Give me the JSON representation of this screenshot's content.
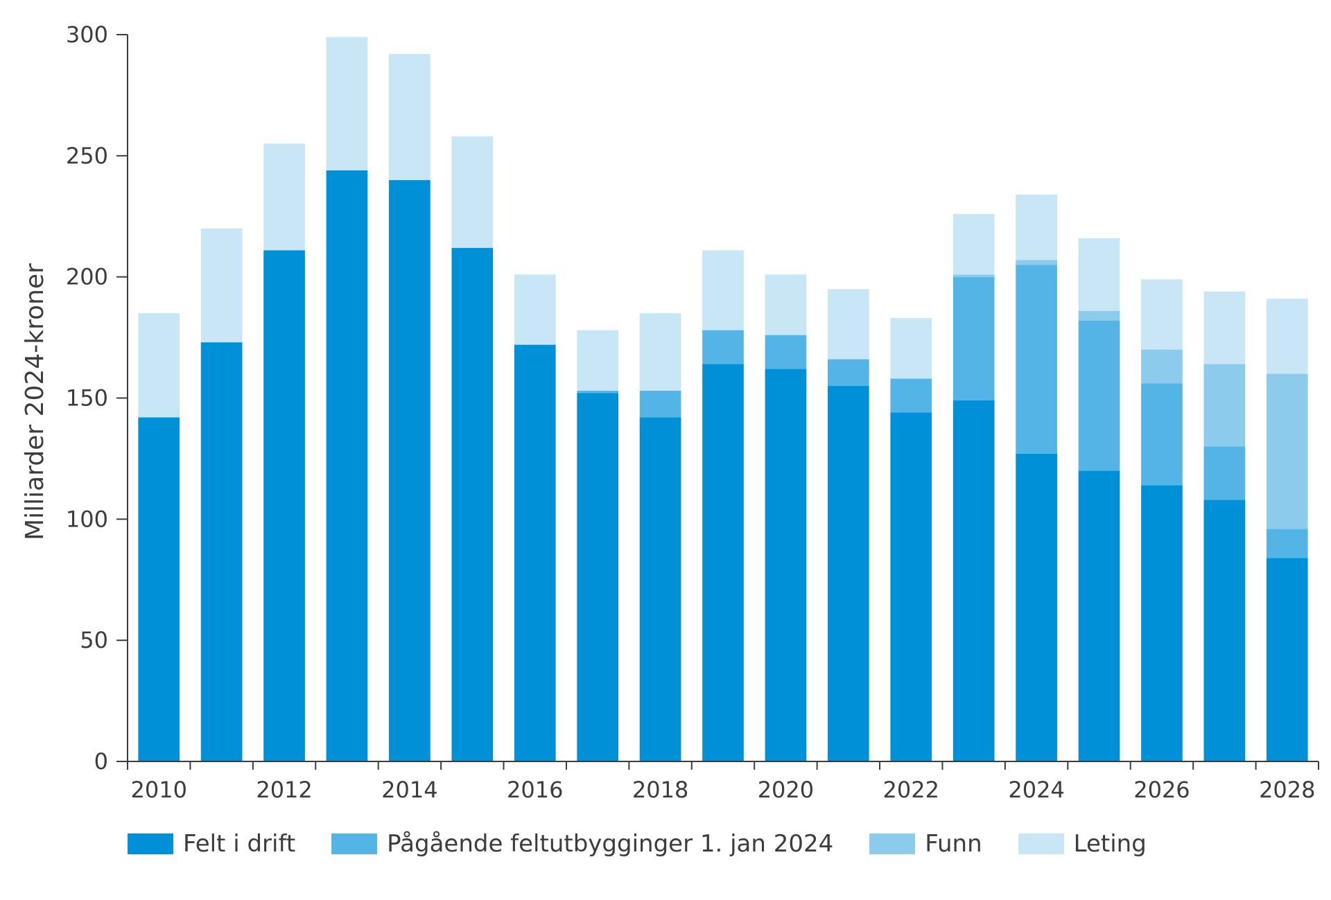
{
  "chart_data": {
    "type": "bar",
    "stacked": true,
    "title": "",
    "xlabel": "",
    "ylabel": "Milliarder 2024-kroner",
    "ylim": [
      0,
      300
    ],
    "yticks": [
      "0",
      "50",
      "100",
      "150",
      "200",
      "250",
      "300"
    ],
    "grid": false,
    "legend_position": "bottom",
    "categories": [
      "2010",
      "2011",
      "2012",
      "2013",
      "2014",
      "2015",
      "2016",
      "2017",
      "2018",
      "2019",
      "2020",
      "2021",
      "2022",
      "2023",
      "2024",
      "2025",
      "2026",
      "2027",
      "2028"
    ],
    "xtick_labels": [
      "2010",
      "2012",
      "2014",
      "2016",
      "2018",
      "2020",
      "2022",
      "2024",
      "2026",
      "2028"
    ],
    "series": [
      {
        "name": "Felt i drift",
        "color": "#0090d8",
        "values": [
          142,
          173,
          211,
          244,
          240,
          212,
          172,
          152,
          142,
          164,
          162,
          155,
          144,
          149,
          127,
          120,
          114,
          108,
          84
        ]
      },
      {
        "name": "Pågående feltutbygginger 1. jan 2024",
        "color": "#55b4e6",
        "values": [
          0,
          0,
          0,
          0,
          0,
          0,
          0,
          1,
          11,
          14,
          14,
          11,
          14,
          51,
          78,
          62,
          42,
          22,
          12
        ]
      },
      {
        "name": "Funn",
        "color": "#8dcbec",
        "values": [
          0,
          0,
          0,
          0,
          0,
          0,
          0,
          0,
          0,
          0,
          0,
          0,
          0,
          1,
          2,
          4,
          14,
          34,
          64
        ]
      },
      {
        "name": "Leting",
        "color": "#c9e6f6",
        "values": [
          43,
          47,
          44,
          55,
          52,
          46,
          29,
          25,
          32,
          33,
          25,
          29,
          25,
          25,
          27,
          30,
          29,
          30,
          31
        ]
      }
    ]
  }
}
